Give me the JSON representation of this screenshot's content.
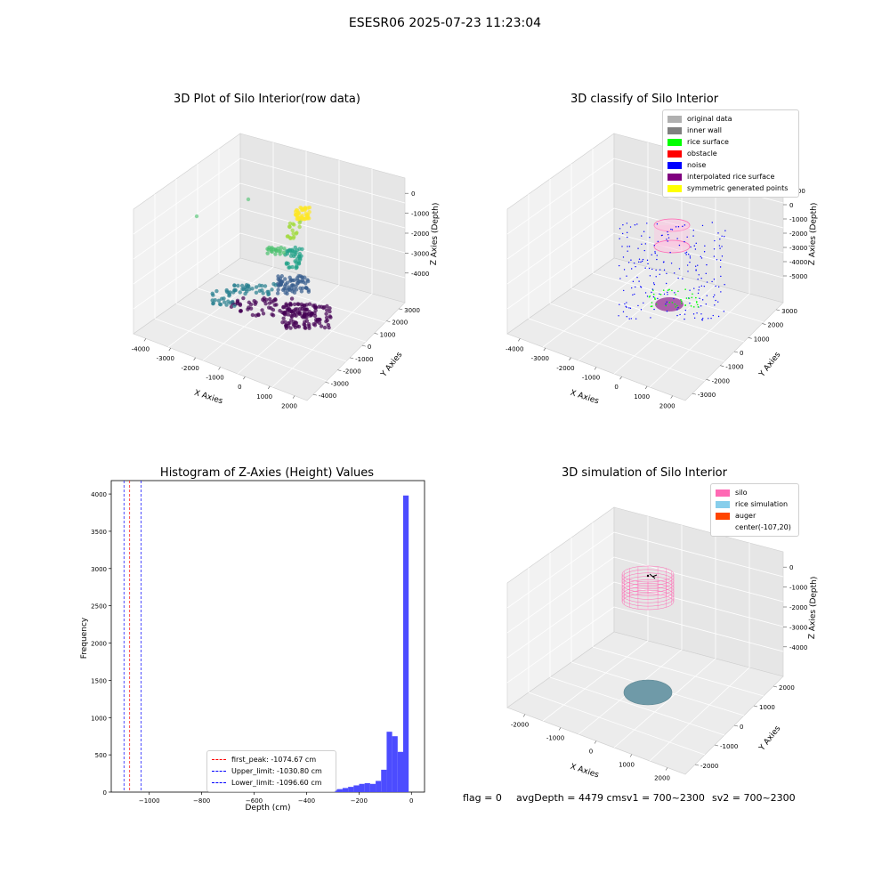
{
  "figure": {
    "suptitle": "ESESR06 2025-07-23 11:23:04"
  },
  "chart_data": [
    {
      "type": "scatter",
      "title": "3D Plot of Silo Interior(row data)",
      "xlabel": "X Axies",
      "ylabel": "Y Axies",
      "zlabel": "Z Axies (Depth)",
      "x_ticks": [
        "-4000",
        "-3000",
        "-2000",
        "-1000",
        "0",
        "1000",
        "2000"
      ],
      "y_ticks": [
        "-4000",
        "-3000",
        "-2000",
        "-1000",
        "0",
        "1000",
        "2000",
        "3000"
      ],
      "z_ticks": [
        "0",
        "-1000",
        "-2000",
        "-3000",
        "-4000"
      ],
      "colormap": "viridis"
    },
    {
      "type": "scatter",
      "title": "3D classify of Silo Interior",
      "xlabel": "X Axies",
      "ylabel": "Y Axies",
      "zlabel": "Z Axies (Depth)",
      "x_ticks": [
        "-4000",
        "-3000",
        "-2000",
        "-1000",
        "0",
        "1000",
        "2000"
      ],
      "y_ticks": [
        "-3000",
        "-2000",
        "-1000",
        "0",
        "1000",
        "2000",
        "3000"
      ],
      "z_ticks": [
        "1000",
        "0",
        "-1000",
        "-2000",
        "-3000",
        "-4000",
        "-5000"
      ],
      "legend": [
        {
          "label": "original data",
          "color": "#b0b0b0"
        },
        {
          "label": "inner wall",
          "color": "#808080"
        },
        {
          "label": "rice surface",
          "color": "#00ff00"
        },
        {
          "label": "obstacle",
          "color": "#ff0000"
        },
        {
          "label": "noise",
          "color": "#0000ff"
        },
        {
          "label": "interpolated rice surface",
          "color": "#800080"
        },
        {
          "label": "symmetric generated points",
          "color": "#ffff00"
        }
      ]
    },
    {
      "type": "histogram",
      "title": "Histogram of Z-Axies (Height) Values",
      "xlabel": "Depth (cm)",
      "ylabel": "Frequency",
      "xlim": [
        -1145,
        50
      ],
      "ylim": [
        0,
        4180
      ],
      "x_ticks": [
        -1000,
        -800,
        -600,
        -400,
        -200,
        0
      ],
      "y_ticks": [
        0,
        500,
        1000,
        1500,
        2000,
        2500,
        3000,
        3500,
        4000
      ],
      "bar_color": "#4c4cff",
      "bin_width": 21,
      "bins": [
        {
          "x": -483,
          "count": 2
        },
        {
          "x": -462,
          "count": 3
        },
        {
          "x": -441,
          "count": 4
        },
        {
          "x": -420,
          "count": 5
        },
        {
          "x": -399,
          "count": 7
        },
        {
          "x": -378,
          "count": 8
        },
        {
          "x": -357,
          "count": 10
        },
        {
          "x": -336,
          "count": 14
        },
        {
          "x": -315,
          "count": 22
        },
        {
          "x": -294,
          "count": 30
        },
        {
          "x": -273,
          "count": 40
        },
        {
          "x": -252,
          "count": 55
        },
        {
          "x": -231,
          "count": 70
        },
        {
          "x": -210,
          "count": 90
        },
        {
          "x": -189,
          "count": 110
        },
        {
          "x": -168,
          "count": 120
        },
        {
          "x": -147,
          "count": 110
        },
        {
          "x": -126,
          "count": 150
        },
        {
          "x": -105,
          "count": 300
        },
        {
          "x": -84,
          "count": 810
        },
        {
          "x": -63,
          "count": 750
        },
        {
          "x": -42,
          "count": 540
        },
        {
          "x": -21,
          "count": 3980
        }
      ],
      "vlines": [
        {
          "label": "first_peak: -1074.67 cm",
          "x": -1074.67,
          "color": "#ff0000"
        },
        {
          "label": "Upper_limit: -1030.80 cm",
          "x": -1030.8,
          "color": "#0000ff"
        },
        {
          "label": "Lower_limit: -1096.60 cm",
          "x": -1096.6,
          "color": "#0000ff"
        }
      ]
    },
    {
      "type": "surface",
      "title": "3D simulation of Silo Interior",
      "xlabel": "X Axies",
      "ylabel": "Y Axies",
      "zlabel": "Z Axies (Depth)",
      "x_ticks": [
        "-2000",
        "-1000",
        "0",
        "1000",
        "2000"
      ],
      "y_ticks": [
        "-2000",
        "-1000",
        "0",
        "1000",
        "2000"
      ],
      "z_ticks": [
        "0",
        "-1000",
        "-2000",
        "-3000",
        "-4000"
      ],
      "legend": [
        {
          "label": "silo",
          "color": "#ff69b4"
        },
        {
          "label": "rice simulation",
          "color": "#87ceeb"
        },
        {
          "label": "auger",
          "color": "#ff4500"
        },
        {
          "label": "center(-107,20)",
          "color": ""
        }
      ]
    }
  ],
  "status": {
    "flag": "flag = 0",
    "avg": "avgDepth = 4479 cmsv1 = 700~2300",
    "sv2": "sv2 = 700~2300"
  }
}
